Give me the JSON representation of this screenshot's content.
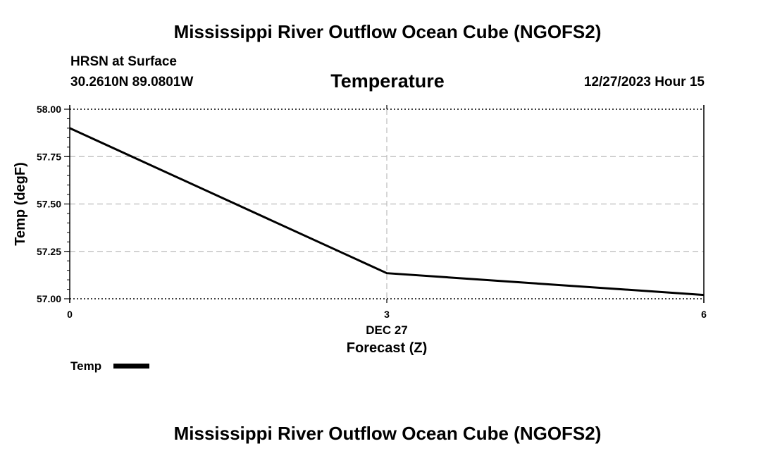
{
  "header": {
    "title": "Mississippi River Outflow Ocean Cube (NGOFS2)",
    "station": "HRSN at Surface",
    "coords": "30.2610N  89.0801W",
    "datetime": "12/27/2023 Hour 15"
  },
  "footer": {
    "title": "Mississippi River Outflow Ocean Cube (NGOFS2)"
  },
  "chart_data": {
    "type": "line",
    "title": "Temperature",
    "xlabel": "Forecast (Z)",
    "ylabel": "Temp (degF)",
    "x_date_label": "DEC 27",
    "xlim": [
      0,
      6
    ],
    "ylim": [
      57.0,
      58.0
    ],
    "x_ticks": [
      0,
      3,
      6
    ],
    "x_tick_labels": [
      "0",
      "3",
      "6"
    ],
    "y_ticks": [
      57.0,
      57.25,
      57.5,
      57.75,
      58.0
    ],
    "y_tick_labels": [
      "57.00",
      "57.25",
      "57.50",
      "57.75",
      "58.00"
    ],
    "grid": true,
    "legend_position": "bottom-left",
    "series": [
      {
        "name": "Temp",
        "color": "#000000",
        "x": [
          0,
          3,
          6
        ],
        "y": [
          57.9,
          57.135,
          57.02
        ]
      }
    ]
  }
}
